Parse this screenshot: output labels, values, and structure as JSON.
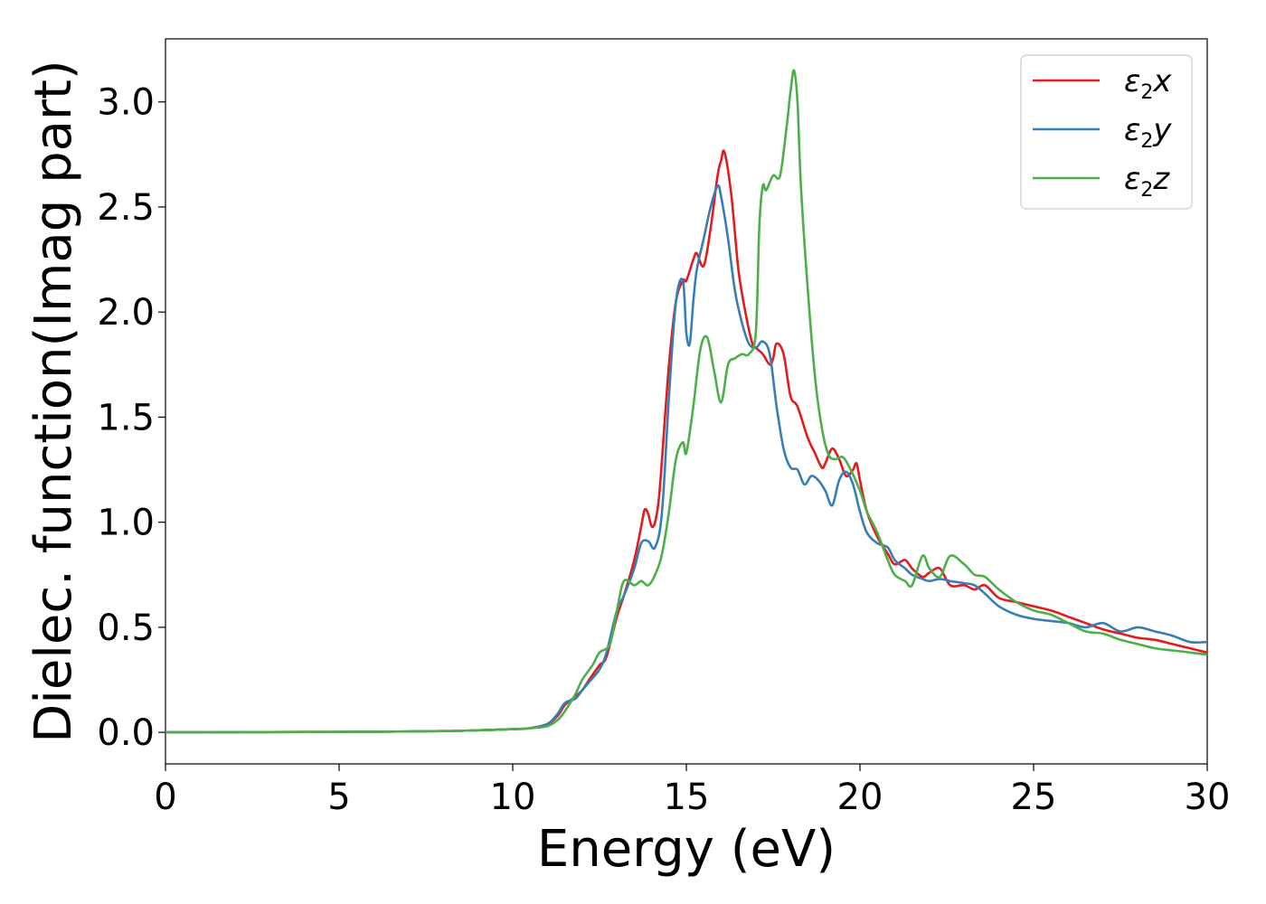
{
  "chart_data": {
    "type": "line",
    "xlabel": "Energy (eV)",
    "ylabel": "Dielec. function(Imag part)",
    "xlim": [
      0,
      30
    ],
    "ylim": [
      -0.15,
      3.3
    ],
    "xticks": [
      0,
      5,
      10,
      15,
      20,
      25,
      30
    ],
    "xtick_labels": [
      "0",
      "5",
      "10",
      "15",
      "20",
      "25",
      "30"
    ],
    "yticks": [
      0.0,
      0.5,
      1.0,
      1.5,
      2.0,
      2.5,
      3.0
    ],
    "ytick_labels": [
      "0.0",
      "0.5",
      "1.0",
      "1.5",
      "2.0",
      "2.5",
      "3.0"
    ],
    "grid": false,
    "legend_position": "top-right",
    "series": [
      {
        "name": "ε2x",
        "legend": {
          "base": "ε",
          "sub": "2",
          "var": "x"
        },
        "color": "#e41a1c",
        "x": [
          0,
          2,
          4,
          6,
          8,
          9,
          10,
          10.5,
          11,
          11.3,
          11.5,
          11.8,
          12,
          12.2,
          12.5,
          12.7,
          13,
          13.2,
          13.5,
          13.7,
          13.8,
          13.9,
          14,
          14.1,
          14.2,
          14.3,
          14.5,
          14.7,
          14.9,
          15,
          15.2,
          15.3,
          15.5,
          15.7,
          15.9,
          16,
          16.1,
          16.3,
          16.5,
          16.7,
          16.9,
          17,
          17.2,
          17.4,
          17.5,
          17.6,
          17.8,
          18,
          18.2,
          18.5,
          18.7,
          18.9,
          19,
          19.2,
          19.4,
          19.6,
          19.8,
          19.9,
          20,
          20.2,
          20.5,
          20.8,
          21,
          21.3,
          21.5,
          21.8,
          22,
          22.3,
          22.6,
          23,
          23.3,
          23.6,
          24,
          24.5,
          25,
          25.5,
          26,
          26.5,
          27,
          27.5,
          28,
          28.5,
          29,
          29.5,
          30
        ],
        "y": [
          0,
          0.001,
          0.002,
          0.003,
          0.006,
          0.01,
          0.015,
          0.02,
          0.04,
          0.08,
          0.13,
          0.17,
          0.2,
          0.25,
          0.32,
          0.36,
          0.55,
          0.65,
          0.82,
          0.98,
          1.06,
          1.04,
          0.98,
          1.0,
          1.1,
          1.3,
          1.75,
          2.05,
          2.15,
          2.15,
          2.25,
          2.28,
          2.22,
          2.4,
          2.65,
          2.72,
          2.76,
          2.55,
          2.2,
          2.0,
          1.85,
          1.83,
          1.8,
          1.75,
          1.78,
          1.85,
          1.8,
          1.6,
          1.55,
          1.4,
          1.33,
          1.26,
          1.28,
          1.35,
          1.3,
          1.22,
          1.25,
          1.28,
          1.2,
          1.05,
          0.93,
          0.85,
          0.8,
          0.82,
          0.78,
          0.74,
          0.76,
          0.78,
          0.7,
          0.7,
          0.68,
          0.7,
          0.64,
          0.62,
          0.6,
          0.58,
          0.55,
          0.52,
          0.49,
          0.47,
          0.45,
          0.44,
          0.42,
          0.4,
          0.38
        ]
      },
      {
        "name": "ε2y",
        "legend": {
          "base": "ε",
          "sub": "2",
          "var": "y"
        },
        "color": "#377eb8",
        "x": [
          0,
          2,
          4,
          6,
          8,
          9,
          10,
          10.5,
          11,
          11.3,
          11.5,
          11.8,
          12,
          12.2,
          12.5,
          12.7,
          13,
          13.2,
          13.5,
          13.7,
          13.9,
          14.1,
          14.3,
          14.5,
          14.7,
          14.9,
          15,
          15.1,
          15.2,
          15.3,
          15.5,
          15.7,
          15.9,
          16,
          16.2,
          16.4,
          16.6,
          16.8,
          17,
          17.2,
          17.4,
          17.6,
          17.8,
          18,
          18.2,
          18.4,
          18.6,
          18.8,
          19,
          19.2,
          19.4,
          19.6,
          19.8,
          20,
          20.2,
          20.5,
          20.8,
          21,
          21.3,
          21.5,
          21.8,
          22,
          22.3,
          22.6,
          23,
          23.3,
          23.6,
          24,
          24.5,
          25,
          25.5,
          26,
          26.5,
          27,
          27.5,
          28,
          28.5,
          29,
          29.5,
          30
        ],
        "y": [
          0,
          0.001,
          0.002,
          0.003,
          0.006,
          0.01,
          0.015,
          0.02,
          0.04,
          0.09,
          0.14,
          0.16,
          0.2,
          0.24,
          0.3,
          0.38,
          0.58,
          0.65,
          0.78,
          0.9,
          0.91,
          0.88,
          1.05,
          1.6,
          2.05,
          2.15,
          1.9,
          1.85,
          2.05,
          2.2,
          2.35,
          2.5,
          2.6,
          2.55,
          2.35,
          2.1,
          1.95,
          1.85,
          1.83,
          1.86,
          1.8,
          1.55,
          1.35,
          1.26,
          1.25,
          1.18,
          1.22,
          1.2,
          1.15,
          1.08,
          1.2,
          1.24,
          1.18,
          1.05,
          0.95,
          0.9,
          0.88,
          0.82,
          0.78,
          0.75,
          0.73,
          0.72,
          0.73,
          0.72,
          0.71,
          0.7,
          0.66,
          0.6,
          0.56,
          0.54,
          0.53,
          0.52,
          0.5,
          0.52,
          0.48,
          0.5,
          0.48,
          0.46,
          0.43,
          0.43
        ]
      },
      {
        "name": "ε2z",
        "legend": {
          "base": "ε",
          "sub": "2",
          "var": "z"
        },
        "color": "#4daf4a",
        "x": [
          0,
          2,
          4,
          6,
          8,
          9,
          10,
          10.5,
          11,
          11.3,
          11.5,
          11.8,
          12,
          12.3,
          12.5,
          12.8,
          13,
          13.2,
          13.5,
          13.7,
          13.9,
          14.1,
          14.3,
          14.5,
          14.7,
          14.9,
          15,
          15.2,
          15.4,
          15.6,
          15.8,
          16,
          16.2,
          16.4,
          16.6,
          16.8,
          17,
          17.1,
          17.2,
          17.3,
          17.5,
          17.7,
          17.9,
          18,
          18.1,
          18.2,
          18.3,
          18.5,
          18.7,
          18.9,
          19.1,
          19.3,
          19.5,
          19.7,
          20,
          20.2,
          20.5,
          20.8,
          21,
          21.3,
          21.5,
          21.8,
          22,
          22.3,
          22.6,
          23,
          23.3,
          23.6,
          24,
          24.5,
          25,
          25.5,
          26,
          26.5,
          27,
          27.5,
          28,
          28.5,
          29,
          29.5,
          30
        ],
        "y": [
          0,
          0.001,
          0.002,
          0.003,
          0.006,
          0.01,
          0.015,
          0.02,
          0.03,
          0.06,
          0.1,
          0.18,
          0.25,
          0.32,
          0.38,
          0.42,
          0.58,
          0.72,
          0.7,
          0.72,
          0.7,
          0.75,
          0.85,
          1.05,
          1.3,
          1.38,
          1.33,
          1.55,
          1.82,
          1.88,
          1.72,
          1.57,
          1.75,
          1.78,
          1.8,
          1.8,
          1.9,
          2.4,
          2.6,
          2.58,
          2.65,
          2.65,
          2.9,
          3.05,
          3.15,
          3.0,
          2.6,
          2.1,
          1.7,
          1.45,
          1.32,
          1.3,
          1.31,
          1.26,
          1.15,
          1.05,
          0.95,
          0.82,
          0.75,
          0.72,
          0.7,
          0.84,
          0.78,
          0.74,
          0.84,
          0.8,
          0.75,
          0.74,
          0.68,
          0.62,
          0.58,
          0.56,
          0.52,
          0.48,
          0.47,
          0.44,
          0.42,
          0.4,
          0.39,
          0.38,
          0.37
        ]
      }
    ]
  }
}
